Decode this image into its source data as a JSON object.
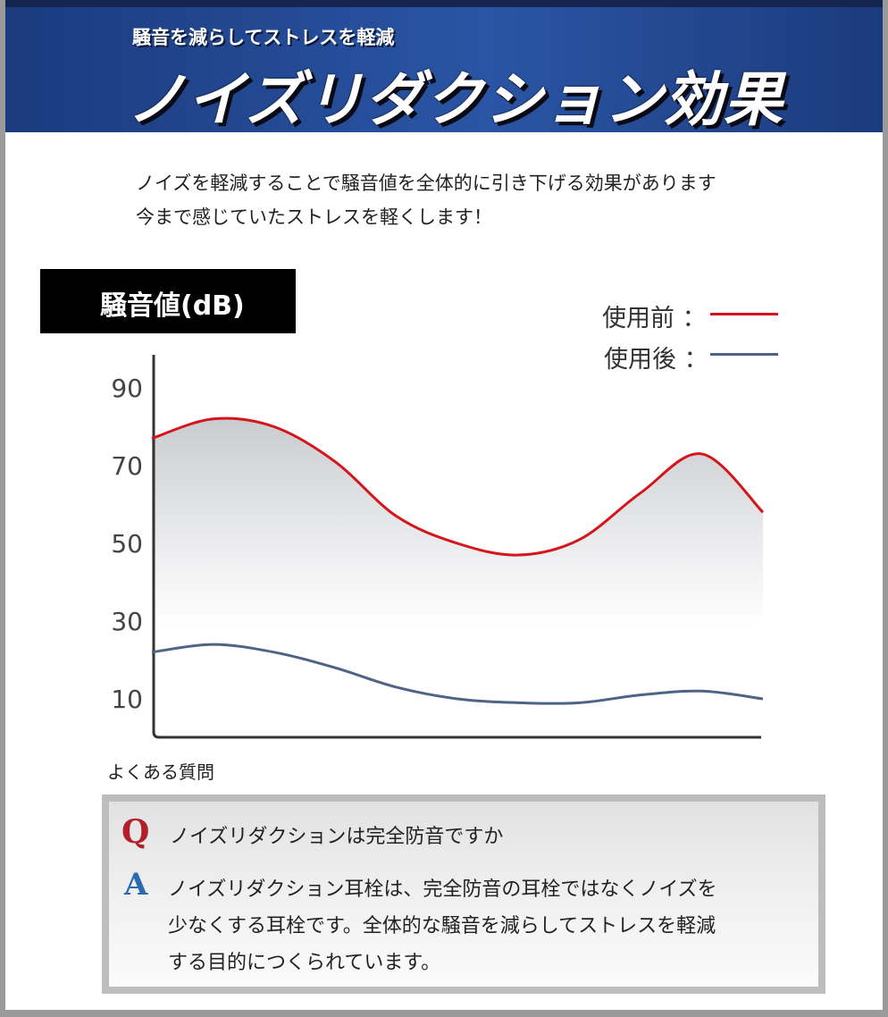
{
  "header": {
    "subtitle": "騒音を減らしてストレスを軽減",
    "title": "ノイズリダクション効果"
  },
  "intro": {
    "line1": "ノイズを軽減することで騒音値を全体的に引き下げる効果があります",
    "line2": "今まで感じていたストレスを軽くします！"
  },
  "chart_label": "騒音値(dB)",
  "legend": {
    "before": "使用前 ：",
    "after": "使用後 ："
  },
  "colors": {
    "before": "#d4151c",
    "after": "#4d6485",
    "header": "#2a55a4",
    "q": "#b21e2a",
    "a": "#2a6ab0"
  },
  "chart_data": {
    "type": "line",
    "ylabel": "騒音値(dB)",
    "y_ticks": [
      "90",
      "70",
      "50",
      "30",
      "10"
    ],
    "y_tick_values": [
      90,
      70,
      50,
      30,
      10
    ],
    "ylim": [
      0,
      99
    ],
    "x": [
      0,
      1,
      2,
      3,
      4,
      5,
      6,
      7,
      8,
      9,
      10
    ],
    "series": [
      {
        "name": "使用前",
        "values": [
          77,
          82,
          80,
          71,
          57,
          50,
          47,
          51,
          63,
          73,
          58
        ]
      },
      {
        "name": "使用後",
        "values": [
          22,
          24,
          22,
          18,
          13,
          10,
          9,
          9,
          11,
          12,
          10
        ]
      }
    ],
    "grid": false,
    "legend_position": "top-right"
  },
  "faq": {
    "heading": "よくある質問",
    "q_mark": "Q",
    "question": "ノイズリダクションは完全防音ですか",
    "a_mark": "A",
    "answer_lines": [
      "ノイズリダクション耳栓は、完全防音の耳栓ではなくノイズを",
      "少なくする耳栓です。全体的な騒音を減らしてストレスを軽減",
      "する目的につくられています。"
    ]
  }
}
